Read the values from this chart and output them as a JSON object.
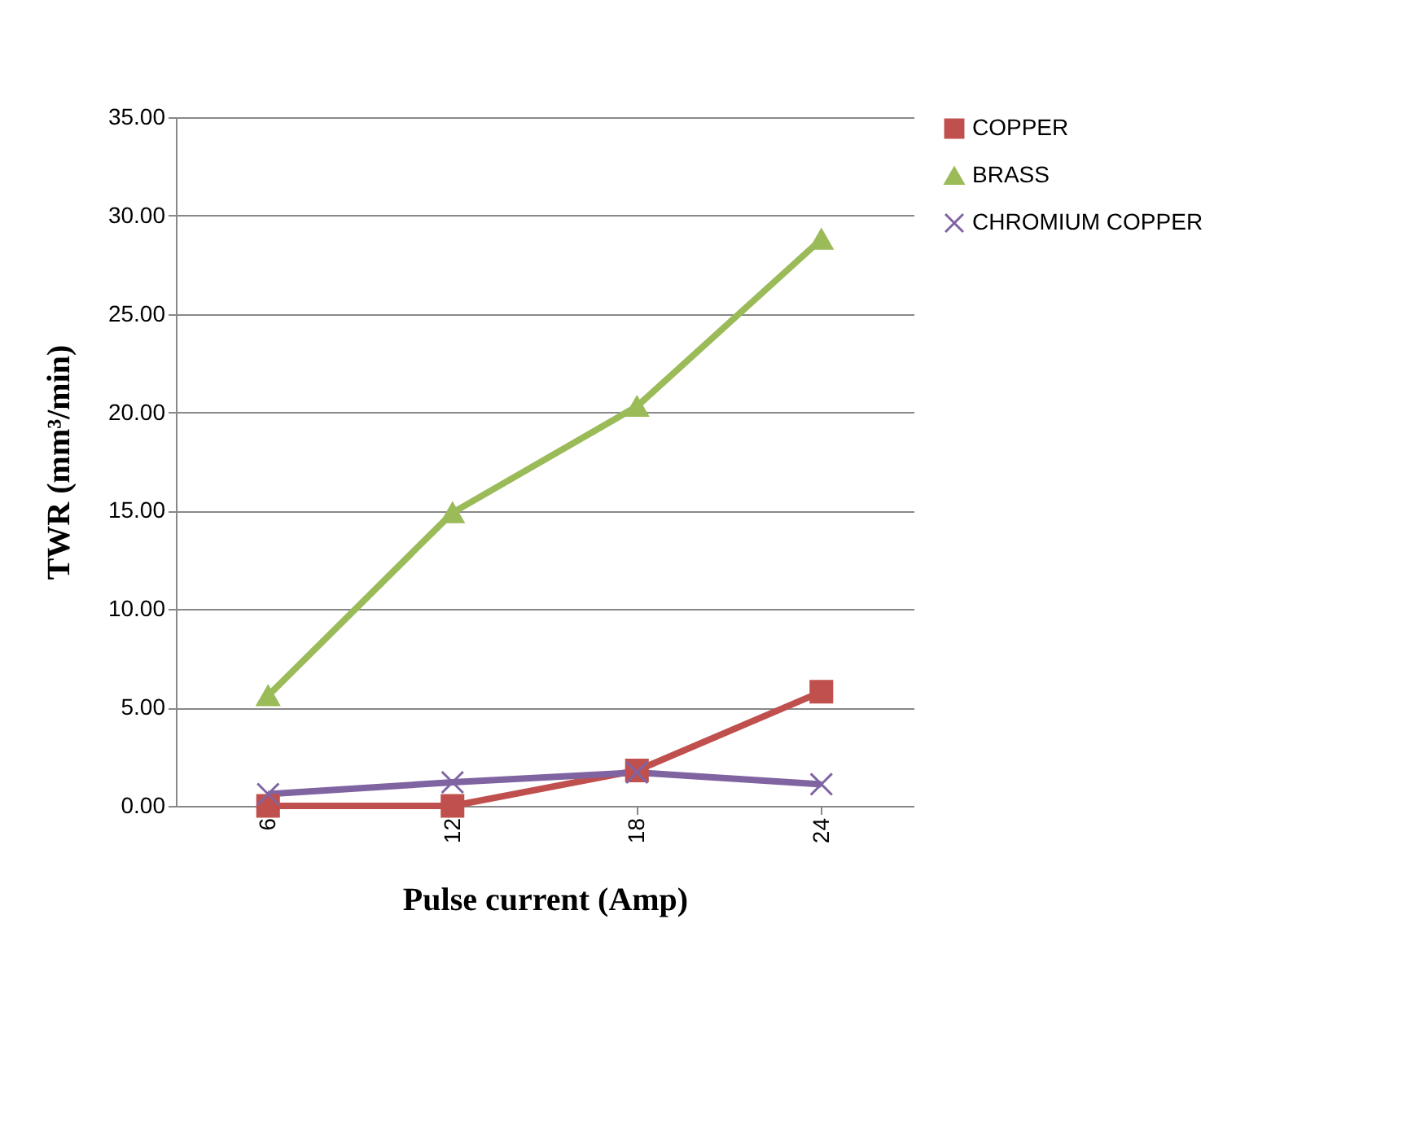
{
  "chart_data": {
    "type": "line",
    "xlabel": "Pulse current (Amp)",
    "ylabel": "TWR (mm³/min)",
    "categories": [
      "6",
      "12",
      "18",
      "24"
    ],
    "series": [
      {
        "name": "COPPER",
        "color": "#c0504d",
        "marker": "square",
        "values": [
          0,
          0,
          1.8,
          5.8
        ]
      },
      {
        "name": "BRASS",
        "color": "#9bbb59",
        "marker": "triangle",
        "values": [
          5.6,
          14.9,
          20.3,
          28.8
        ]
      },
      {
        "name": "CHROMIUM COPPER",
        "color": "#8064a2",
        "marker": "cross",
        "values": [
          0.6,
          1.2,
          1.7,
          1.1
        ]
      }
    ],
    "ylim": [
      0,
      35
    ],
    "yticks": [
      {
        "value": 0,
        "label": "0.00"
      },
      {
        "value": 5,
        "label": "5.00"
      },
      {
        "value": 10,
        "label": "10.00"
      },
      {
        "value": 15,
        "label": "15.00"
      },
      {
        "value": 20,
        "label": "20.00"
      },
      {
        "value": 25,
        "label": "25.00"
      },
      {
        "value": 30,
        "label": "30.00"
      },
      {
        "value": 35,
        "label": "35.00"
      }
    ],
    "grid": "y",
    "legend": "right",
    "line_style": "solid"
  }
}
